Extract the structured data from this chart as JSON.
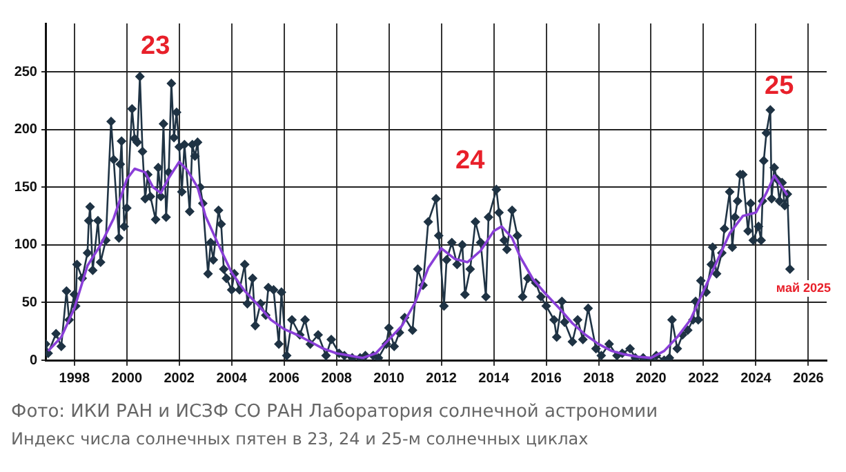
{
  "chart_data": {
    "type": "line",
    "xlim": [
      1996.9,
      2026.7
    ],
    "xticks": [
      1998,
      2000,
      2002,
      2004,
      2006,
      2008,
      2010,
      2012,
      2014,
      2016,
      2018,
      2020,
      2022,
      2024,
      2026
    ],
    "ylim": [
      0,
      292
    ],
    "yticks": [
      0,
      50,
      100,
      150,
      200,
      250
    ],
    "grid": true,
    "legend": false,
    "line_style": "solid",
    "series": [
      {
        "color": "#1f3344",
        "marker": "diamond",
        "x": [
          1996.9,
          1997.0,
          1997.3,
          1997.5,
          1997.7,
          1997.8,
          1998.0,
          1998.05,
          1998.1,
          1998.3,
          1998.5,
          1998.55,
          1998.6,
          1998.7,
          1998.9,
          1999.0,
          1999.2,
          1999.4,
          1999.5,
          1999.7,
          1999.75,
          1999.8,
          1999.9,
          2000.0,
          2000.2,
          2000.3,
          2000.4,
          2000.5,
          2000.6,
          2000.7,
          2000.8,
          2000.9,
          2001.1,
          2001.2,
          2001.3,
          2001.4,
          2001.5,
          2001.6,
          2001.7,
          2001.8,
          2001.9,
          2002.0,
          2002.1,
          2002.2,
          2002.4,
          2002.5,
          2002.6,
          2002.7,
          2002.8,
          2002.9,
          2003.1,
          2003.2,
          2003.3,
          2003.5,
          2003.6,
          2003.7,
          2003.8,
          2004.0,
          2004.1,
          2004.3,
          2004.5,
          2004.6,
          2004.8,
          2004.9,
          2005.1,
          2005.3,
          2005.4,
          2005.6,
          2005.8,
          2005.9,
          2006.1,
          2006.3,
          2006.6,
          2006.8,
          2007.0,
          2007.3,
          2007.6,
          2007.8,
          2008.1,
          2008.3,
          2008.6,
          2008.9,
          2009.1,
          2009.4,
          2009.6,
          2009.9,
          2010.0,
          2010.2,
          2010.4,
          2010.6,
          2010.9,
          2011.1,
          2011.3,
          2011.5,
          2011.8,
          2011.9,
          2012.1,
          2012.2,
          2012.4,
          2012.6,
          2012.8,
          2012.9,
          2013.1,
          2013.3,
          2013.5,
          2013.7,
          2013.8,
          2014.1,
          2014.2,
          2014.4,
          2014.5,
          2014.7,
          2014.9,
          2015.1,
          2015.3,
          2015.6,
          2015.8,
          2016.0,
          2016.3,
          2016.4,
          2016.6,
          2016.7,
          2017.0,
          2017.2,
          2017.4,
          2017.6,
          2017.9,
          2018.1,
          2018.4,
          2018.7,
          2018.9,
          2019.2,
          2019.4,
          2019.7,
          2020.0,
          2020.2,
          2020.5,
          2020.7,
          2020.8,
          2021.0,
          2021.2,
          2021.4,
          2021.6,
          2021.7,
          2021.8,
          2021.9,
          2022.1,
          2022.3,
          2022.35,
          2022.5,
          2022.7,
          2022.8,
          2023.0,
          2023.1,
          2023.2,
          2023.3,
          2023.4,
          2023.5,
          2023.7,
          2023.8,
          2023.9,
          2024.1,
          2024.2,
          2024.25,
          2024.3,
          2024.4,
          2024.55,
          2024.6,
          2024.7,
          2024.8,
          2024.9,
          2025.0,
          2025.1,
          2025.2,
          2025.3
        ],
        "values": [
          14,
          6,
          23,
          12,
          60,
          35,
          57,
          47,
          83,
          71,
          93,
          121,
          133,
          78,
          121,
          85,
          104,
          207,
          174,
          106,
          170,
          190,
          116,
          132,
          218,
          192,
          189,
          246,
          181,
          140,
          161,
          142,
          122,
          167,
          142,
          205,
          124,
          163,
          240,
          193,
          215,
          185,
          146,
          187,
          129,
          187,
          177,
          189,
          150,
          136,
          75,
          102,
          87,
          130,
          118,
          79,
          71,
          61,
          75,
          61,
          83,
          49,
          71,
          30,
          49,
          39,
          63,
          61,
          14,
          59,
          4,
          35,
          22,
          35,
          14,
          22,
          4,
          18,
          6,
          4,
          2,
          2,
          4,
          4,
          2,
          14,
          28,
          12,
          24,
          37,
          26,
          79,
          65,
          120,
          140,
          108,
          47,
          87,
          102,
          83,
          100,
          57,
          79,
          120,
          102,
          55,
          124,
          148,
          128,
          104,
          96,
          130,
          108,
          55,
          71,
          67,
          55,
          47,
          35,
          20,
          51,
          33,
          16,
          35,
          18,
          45,
          10,
          4,
          14,
          4,
          6,
          10,
          2,
          2,
          0,
          4,
          0,
          2,
          35,
          10,
          22,
          26,
          35,
          51,
          35,
          69,
          59,
          83,
          98,
          75,
          93,
          114,
          146,
          98,
          124,
          138,
          161,
          161,
          112,
          136,
          104,
          116,
          104,
          138,
          173,
          197,
          217,
          140,
          167,
          157,
          138,
          154,
          134,
          144,
          79
        ]
      },
      {
        "color": "#8a3fd8",
        "marker": "none",
        "x": [
          1997.0,
          1997.5,
          1998.0,
          1998.5,
          1999.0,
          1999.5,
          2000.0,
          2000.3,
          2000.7,
          2001.0,
          2001.3,
          2001.6,
          2002.0,
          2002.3,
          2002.7,
          2003.0,
          2003.5,
          2004.0,
          2004.5,
          2005.0,
          2005.5,
          2006.0,
          2006.5,
          2007.0,
          2007.5,
          2008.0,
          2008.5,
          2009.0,
          2009.5,
          2010.0,
          2010.5,
          2011.0,
          2011.5,
          2012.0,
          2012.5,
          2013.0,
          2013.5,
          2014.0,
          2014.3,
          2014.7,
          2015.0,
          2015.5,
          2016.0,
          2016.5,
          2017.0,
          2017.5,
          2018.0,
          2018.5,
          2019.0,
          2019.5,
          2020.0,
          2020.5,
          2021.0,
          2021.5,
          2022.0,
          2022.5,
          2023.0,
          2023.5,
          2024.0,
          2024.4,
          2024.7,
          2025.0,
          2025.2
        ],
        "values": [
          8,
          20,
          45,
          82,
          100,
          123,
          157,
          166,
          163,
          150,
          145,
          158,
          172,
          165,
          150,
          125,
          100,
          76,
          60,
          48,
          35,
          27,
          22,
          16,
          10,
          6,
          4,
          2,
          6,
          18,
          30,
          50,
          80,
          97,
          88,
          85,
          95,
          112,
          116,
          106,
          90,
          70,
          57,
          45,
          32,
          22,
          14,
          8,
          5,
          3,
          2,
          8,
          20,
          35,
          60,
          85,
          110,
          125,
          128,
          145,
          160,
          150,
          143
        ]
      }
    ],
    "annotations": [
      "23",
      "24",
      "25",
      {
        "text": "май 2025",
        "x": 2025.3,
        "y": 79
      },
      "Фото: ИКИ РАН и ИСЗФ СО РАН Лаборатория солнечной астрономии",
      "Индекс числа солнечных пятен в 23, 24 и 25-м солнечных циклах"
    ]
  }
}
